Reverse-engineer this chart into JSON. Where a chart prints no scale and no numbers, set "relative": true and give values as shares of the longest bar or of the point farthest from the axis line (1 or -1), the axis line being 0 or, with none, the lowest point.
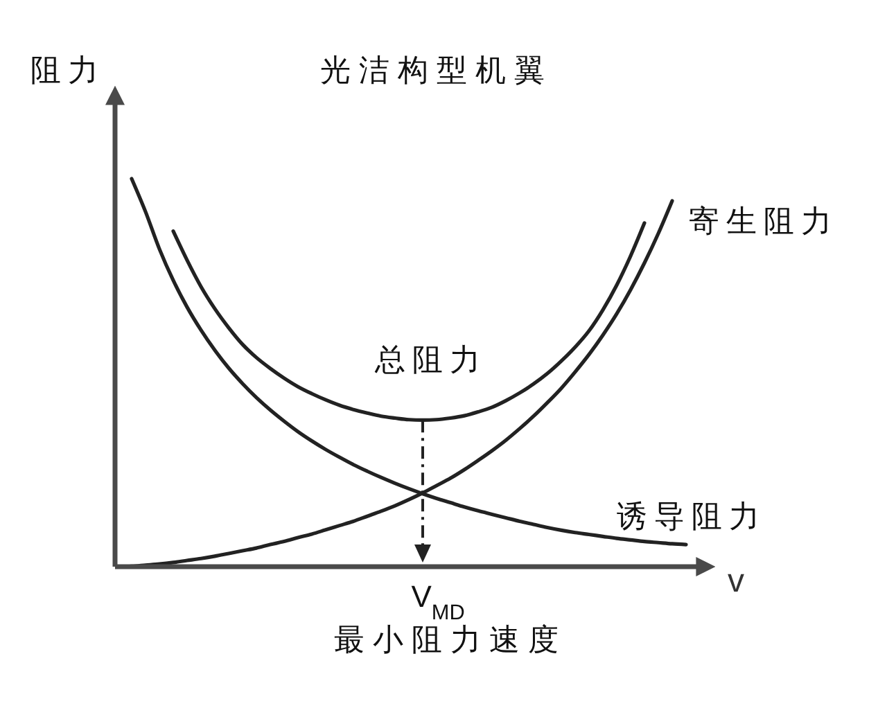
{
  "chart_data": {
    "type": "line",
    "title": "光洁构型机翼",
    "xlabel": "v",
    "ylabel": "阻力",
    "relative": true,
    "categories": [
      null,
      null,
      null,
      null,
      null,
      null,
      null,
      null,
      null,
      null,
      null,
      null,
      null,
      null,
      null,
      null,
      null,
      null,
      null,
      null,
      null,
      null,
      null,
      null,
      null,
      null,
      null,
      null,
      null,
      null,
      null,
      null,
      null,
      null,
      null,
      null,
      null,
      null,
      null,
      null,
      null,
      null
    ],
    "series": [
      {
        "name": "总阻力",
        "color": "#222222",
        "values": [
          null,
          null,
          null,
          null,
          0.865,
          0.79,
          0.722,
          0.665,
          0.616,
          0.573,
          0.539,
          0.511,
          0.486,
          0.464,
          0.446,
          0.43,
          0.416,
          0.405,
          0.396,
          0.388,
          0.383,
          0.379,
          0.378,
          0.379,
          0.383,
          0.389,
          0.399,
          0.411,
          0.428,
          0.448,
          0.471,
          0.498,
          0.53,
          0.566,
          0.608,
          0.662,
          0.726,
          0.801,
          0.886,
          null,
          null,
          null
        ]
      },
      {
        "name": "寄生阻力",
        "color": "#222222",
        "values": [
          0.0,
          0.001,
          0.004,
          0.007,
          0.011,
          0.016,
          0.021,
          0.027,
          0.034,
          0.041,
          0.048,
          0.057,
          0.065,
          0.075,
          0.084,
          0.095,
          0.106,
          0.117,
          0.13,
          0.143,
          0.157,
          0.173,
          0.19,
          0.209,
          0.228,
          0.25,
          0.274,
          0.299,
          0.326,
          0.356,
          0.388,
          0.423,
          0.46,
          0.502,
          0.547,
          0.597,
          0.652,
          0.714,
          0.783,
          0.859,
          0.943,
          null
        ]
      },
      {
        "name": "诱导阻力",
        "color": "#222222",
        "values": [
          null,
          1.0,
          0.915,
          0.819,
          0.738,
          0.669,
          0.61,
          0.558,
          0.512,
          0.472,
          0.436,
          0.404,
          0.375,
          0.348,
          0.324,
          0.302,
          0.282,
          0.263,
          0.246,
          0.23,
          0.215,
          0.201,
          0.188,
          0.176,
          0.165,
          0.154,
          0.144,
          0.135,
          0.126,
          0.117,
          0.109,
          0.101,
          0.094,
          0.088,
          0.083,
          0.078,
          0.073,
          0.069,
          0.065,
          0.062,
          0.059,
          0.057
        ]
      }
    ],
    "ref_lines": [
      {
        "axis": "x",
        "value": "V$_{MD}$",
        "label": "最小阻力速度",
        "line_style": "dashed",
        "color": "#222222"
      }
    ]
  }
}
